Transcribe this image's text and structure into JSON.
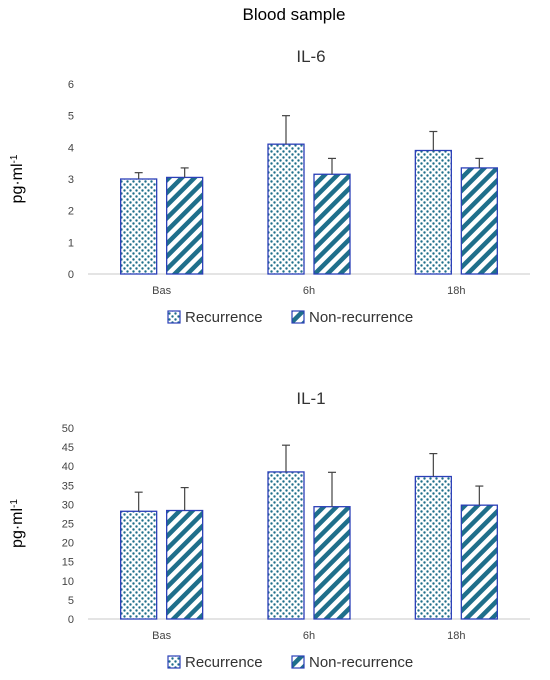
{
  "figure_title": "Blood sample",
  "colors": {
    "recurrence_edge": "#2b3fb8",
    "recurrence_dot": "#1f6f8b",
    "nonrecurrence_edge": "#2b3fb8",
    "nonrecurrence_stripe": "#1f6f8b",
    "axis": "#c8c8c8",
    "error_bar": "#444444"
  },
  "chart_data": [
    {
      "type": "bar",
      "title": "IL-6",
      "ylabel": "pg·ml",
      "ylabel_superscript": "-1",
      "categories": [
        "Bas",
        "6h",
        "18h"
      ],
      "ylim": [
        0,
        6
      ],
      "yticks": [
        0,
        1,
        2,
        3,
        4,
        5,
        6
      ],
      "grid": false,
      "legend_position": "bottom",
      "series": [
        {
          "name": "Recurrence",
          "pattern": "dots",
          "values": [
            3.0,
            4.1,
            3.9
          ],
          "errors": [
            0.2,
            0.9,
            0.6
          ]
        },
        {
          "name": "Non-recurrence",
          "pattern": "stripes",
          "values": [
            3.05,
            3.15,
            3.35
          ],
          "errors": [
            0.3,
            0.5,
            0.3
          ]
        }
      ]
    },
    {
      "type": "bar",
      "title": "IL-1",
      "ylabel": "pg·ml",
      "ylabel_superscript": "-1",
      "categories": [
        "Bas",
        "6h",
        "18h"
      ],
      "ylim": [
        0,
        50
      ],
      "yticks": [
        0,
        5,
        10,
        15,
        20,
        25,
        30,
        35,
        40,
        45,
        50
      ],
      "grid": false,
      "legend_position": "bottom",
      "series": [
        {
          "name": "Recurrence",
          "pattern": "dots",
          "values": [
            28.2,
            38.5,
            37.3
          ],
          "errors": [
            5.0,
            7.0,
            6.0
          ]
        },
        {
          "name": "Non-recurrence",
          "pattern": "stripes",
          "values": [
            28.4,
            29.4,
            29.8
          ],
          "errors": [
            6.0,
            9.0,
            5.0
          ]
        }
      ]
    }
  ]
}
